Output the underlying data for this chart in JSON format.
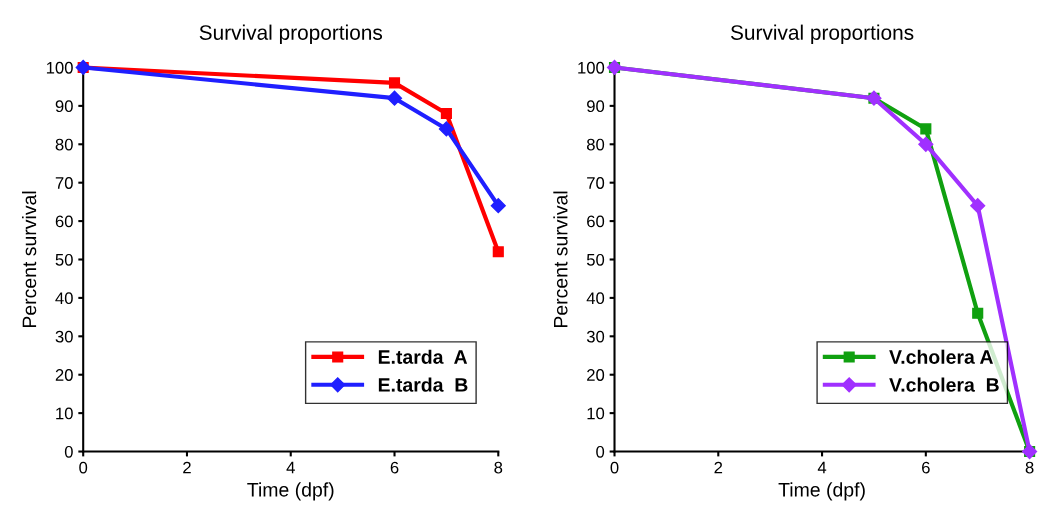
{
  "chart_data": [
    {
      "type": "line",
      "title": "Survival proportions",
      "xlabel": "Time (dpf)",
      "ylabel": "Percent survival",
      "xlim": [
        0,
        8
      ],
      "xticks": [
        0,
        2,
        4,
        6,
        8
      ],
      "ylim": [
        0,
        100
      ],
      "yticks": [
        0,
        10,
        20,
        30,
        40,
        50,
        60,
        70,
        80,
        90,
        100
      ],
      "grid": false,
      "legend": "bottom right",
      "line_style": "solid",
      "series": [
        {
          "name": "E.tarda  A",
          "color": "#ff0000",
          "marker": "square",
          "x": [
            0,
            6,
            7,
            8
          ],
          "values": [
            100,
            96,
            88,
            52
          ]
        },
        {
          "name": "E.tarda  B",
          "color": "#1f1fff",
          "marker": "diamond",
          "x": [
            0,
            6,
            7,
            8
          ],
          "values": [
            100,
            92,
            84,
            64
          ]
        }
      ]
    },
    {
      "type": "line",
      "title": "Survival proportions",
      "xlabel": "Time (dpf)",
      "ylabel": "Percent survival",
      "xlim": [
        0,
        8
      ],
      "xticks": [
        0,
        2,
        4,
        6,
        8
      ],
      "ylim": [
        0,
        100
      ],
      "yticks": [
        0,
        10,
        20,
        30,
        40,
        50,
        60,
        70,
        80,
        90,
        100
      ],
      "grid": false,
      "legend": "bottom right",
      "line_style": "solid",
      "series": [
        {
          "name": "V.cholera A",
          "color": "#10a010",
          "marker": "square",
          "x": [
            0,
            5,
            6,
            7,
            8
          ],
          "values": [
            100,
            92,
            84,
            36,
            0
          ]
        },
        {
          "name": "V.cholera  B",
          "color": "#a030ff",
          "marker": "diamond",
          "x": [
            0,
            5,
            6,
            7,
            8
          ],
          "values": [
            100,
            92,
            80,
            64,
            0
          ]
        }
      ]
    }
  ]
}
